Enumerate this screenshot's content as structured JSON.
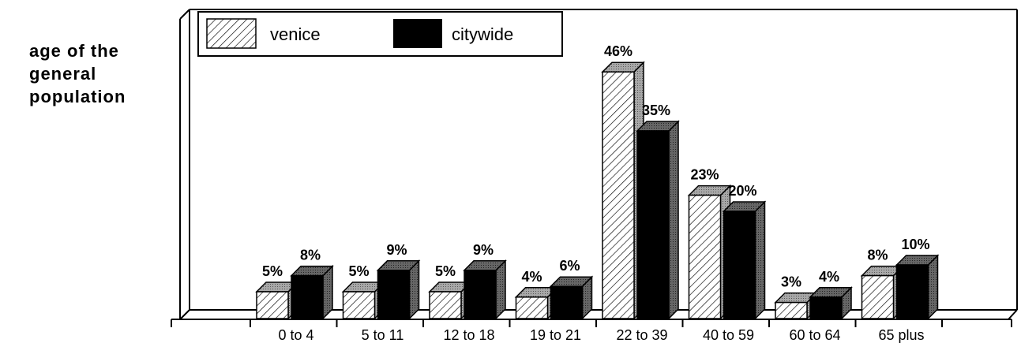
{
  "side_title": [
    "age of the",
    "general",
    "population"
  ],
  "chart_data": {
    "type": "bar",
    "categories": [
      "0 to 4",
      "5 to 11",
      "12 to 18",
      "19 to 21",
      "22 to 39",
      "40 to 59",
      "60 to 64",
      "65 plus"
    ],
    "series": [
      {
        "name": "venice",
        "values": [
          5,
          5,
          5,
          4,
          46,
          23,
          3,
          8
        ],
        "labels": [
          "5%",
          "5%",
          "5%",
          "4%",
          "46%",
          "23%",
          "3%",
          "8%"
        ],
        "pattern": "hatched",
        "color": "#ffffff"
      },
      {
        "name": "citywide",
        "values": [
          8,
          9,
          9,
          6,
          35,
          20,
          4,
          10
        ],
        "labels": [
          "8%",
          "9%",
          "9%",
          "6%",
          "35%",
          "20%",
          "4%",
          "10%"
        ],
        "pattern": "solid",
        "color": "#000000"
      }
    ],
    "ylim": [
      0,
      50
    ],
    "grid": false,
    "legend": "top-left",
    "three_d": true
  }
}
